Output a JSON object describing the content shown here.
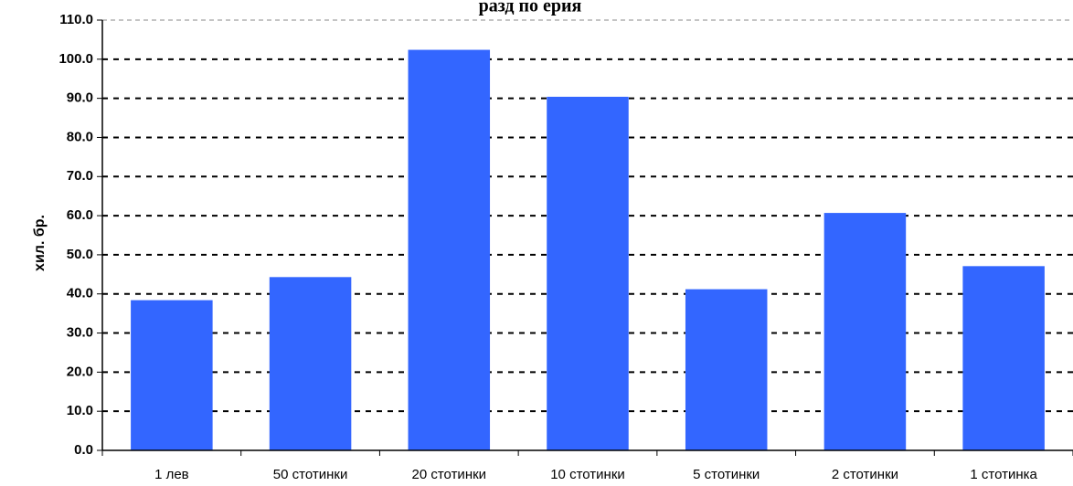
{
  "chart_data": {
    "type": "bar",
    "title": "разд по ерия",
    "xlabel": "",
    "ylabel": "хил. бр.",
    "ylim": [
      0,
      110
    ],
    "ytick_step": 10,
    "ytick_labels": [
      "0.0",
      "10.0",
      "20.0",
      "30.0",
      "40.0",
      "50.0",
      "60.0",
      "70.0",
      "80.0",
      "90.0",
      "100.0",
      "110.0"
    ],
    "categories": [
      "1 лев",
      "50 стотинки",
      "20 стотинки",
      "10 стотинки",
      "5 стотинки",
      "2 стотинки",
      "1 стотинка"
    ],
    "values": [
      38.4,
      44.3,
      102.4,
      90.4,
      41.2,
      60.7,
      47.1
    ],
    "bar_color": "#3366ff",
    "grid": true,
    "legend": "none"
  }
}
